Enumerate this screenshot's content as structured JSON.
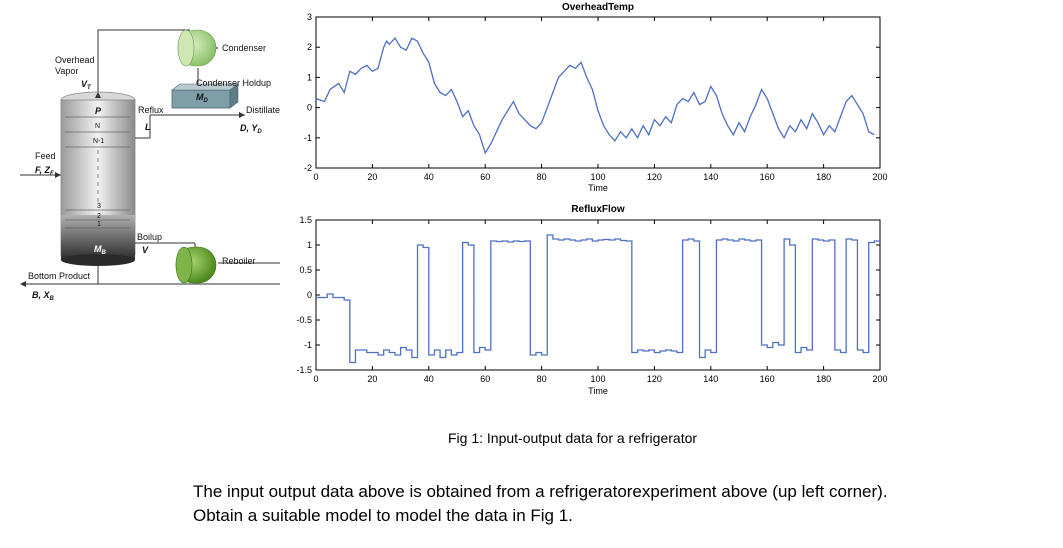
{
  "diagram": {
    "labels": {
      "overhead_vapor_1": "Overhead",
      "overhead_vapor_2": "Vapor",
      "vt": "V",
      "vt_sub": "T",
      "condenser": "Condenser",
      "condenser_holdup": "Condenser Holdup",
      "md": "M",
      "md_sub": "D",
      "reflux": "Reflux",
      "l": "L",
      "distillate": "Distillate",
      "d_yd": "D, Y",
      "d_yd_sub": "D",
      "p": "P",
      "n": "N",
      "n1": "N-1",
      "feed_1": "Feed",
      "feed_2": "F, Z",
      "feed_2_sub": "F",
      "tray3": "3",
      "tray2": "2",
      "tray1": "1",
      "mb": "M",
      "mb_sub": "B",
      "boilup": "Boilup",
      "v": "V",
      "reboiler": "Reboiler",
      "bottom_product": "Bottom Product",
      "b_xb": "B, X",
      "b_xb_sub": "B"
    }
  },
  "chart_data": [
    {
      "type": "line",
      "title": "OverheadTemp",
      "xlabel": "Time",
      "ylabel": "",
      "xlim": [
        0,
        200
      ],
      "ylim": [
        -2,
        3
      ],
      "xticks": [
        "0",
        "20",
        "40",
        "60",
        "80",
        "100",
        "120",
        "140",
        "160",
        "180",
        "200"
      ],
      "yticks": [
        "-2",
        "-1",
        "0",
        "1",
        "2",
        "3"
      ],
      "series": [
        {
          "name": "OverheadTemp",
          "color": "#4d6fc4",
          "x": [
            0,
            3,
            5,
            8,
            10,
            12,
            14,
            16,
            18,
            20,
            22,
            24,
            25,
            26,
            28,
            30,
            32,
            34,
            36,
            38,
            40,
            42,
            44,
            46,
            48,
            50,
            52,
            54,
            56,
            58,
            60,
            62,
            64,
            66,
            68,
            70,
            72,
            74,
            76,
            78,
            80,
            82,
            84,
            86,
            88,
            90,
            92,
            94,
            96,
            98,
            100,
            102,
            104,
            106,
            108,
            110,
            112,
            114,
            116,
            118,
            120,
            122,
            124,
            126,
            128,
            130,
            132,
            134,
            136,
            138,
            140,
            142,
            144,
            146,
            148,
            150,
            152,
            154,
            156,
            158,
            160,
            162,
            164,
            166,
            168,
            170,
            172,
            174,
            176,
            178,
            180,
            182,
            184,
            186,
            188,
            190,
            192,
            194,
            196,
            198
          ],
          "y": [
            0.3,
            0.2,
            0.6,
            0.8,
            0.5,
            1.2,
            1.1,
            1.3,
            1.4,
            1.2,
            1.3,
            2.0,
            2.2,
            2.1,
            2.3,
            2.0,
            1.9,
            2.3,
            2.2,
            1.8,
            1.5,
            0.8,
            0.5,
            0.4,
            0.6,
            0.2,
            -0.3,
            -0.1,
            -0.6,
            -0.9,
            -1.5,
            -1.2,
            -0.8,
            -0.4,
            -0.1,
            0.2,
            -0.2,
            -0.4,
            -0.6,
            -0.7,
            -0.5,
            0.0,
            0.5,
            1.0,
            1.2,
            1.4,
            1.3,
            1.5,
            1.0,
            0.6,
            -0.1,
            -0.6,
            -0.9,
            -1.1,
            -0.8,
            -1.0,
            -0.7,
            -1.0,
            -0.6,
            -0.9,
            -0.4,
            -0.6,
            -0.3,
            -0.5,
            0.1,
            0.3,
            0.2,
            0.5,
            0.1,
            0.2,
            0.7,
            0.4,
            -0.2,
            -0.6,
            -0.9,
            -0.5,
            -0.8,
            -0.3,
            0.1,
            0.6,
            0.3,
            -0.2,
            -0.7,
            -1.0,
            -0.6,
            -0.8,
            -0.4,
            -0.7,
            -0.2,
            -0.5,
            -0.9,
            -0.6,
            -0.8,
            -0.3,
            0.2,
            0.4,
            0.1,
            -0.2,
            -0.8,
            -0.9
          ]
        }
      ]
    },
    {
      "type": "line",
      "title": "RefluxFlow",
      "xlabel": "Time",
      "ylabel": "",
      "xlim": [
        0,
        200
      ],
      "ylim": [
        -1.5,
        1.5
      ],
      "xticks": [
        "0",
        "20",
        "40",
        "60",
        "80",
        "100",
        "120",
        "140",
        "160",
        "180",
        "200"
      ],
      "yticks": [
        "-1.5",
        "-1",
        "-0.5",
        "0",
        "0.5",
        "1",
        "1.5"
      ],
      "series": [
        {
          "name": "RefluxFlow",
          "color": "#4d6fc4",
          "x": [
            0,
            4,
            6,
            10,
            12,
            14,
            18,
            22,
            24,
            26,
            28,
            30,
            32,
            34,
            36,
            38,
            40,
            42,
            44,
            46,
            48,
            50,
            52,
            54,
            56,
            58,
            60,
            62,
            64,
            66,
            68,
            70,
            72,
            74,
            76,
            78,
            80,
            82,
            84,
            86,
            88,
            90,
            92,
            94,
            96,
            98,
            100,
            102,
            104,
            106,
            108,
            110,
            112,
            114,
            116,
            118,
            120,
            122,
            124,
            126,
            128,
            130,
            132,
            134,
            136,
            138,
            140,
            142,
            144,
            146,
            148,
            150,
            152,
            154,
            156,
            158,
            160,
            162,
            164,
            166,
            168,
            170,
            172,
            174,
            176,
            178,
            180,
            182,
            184,
            186,
            188,
            190,
            192,
            194,
            196,
            198
          ],
          "y": [
            -0.05,
            0.02,
            -0.05,
            -0.1,
            -1.35,
            -1.1,
            -1.15,
            -1.2,
            -1.1,
            -1.15,
            -1.2,
            -1.05,
            -1.1,
            -1.25,
            1.0,
            0.95,
            -1.2,
            -1.1,
            -1.25,
            -1.1,
            -1.2,
            -1.15,
            1.05,
            1.0,
            -1.15,
            -1.05,
            -1.1,
            1.08,
            1.07,
            1.08,
            1.06,
            1.08,
            1.07,
            1.08,
            -1.2,
            -1.15,
            -1.2,
            1.2,
            1.12,
            1.1,
            1.12,
            1.1,
            1.08,
            1.1,
            1.12,
            1.08,
            1.1,
            1.11,
            1.1,
            1.12,
            1.09,
            1.08,
            -1.15,
            -1.1,
            -1.12,
            -1.1,
            -1.15,
            -1.12,
            -1.1,
            -1.12,
            -1.15,
            1.1,
            1.12,
            1.08,
            -1.25,
            -1.1,
            -1.15,
            1.1,
            1.12,
            1.1,
            1.08,
            1.12,
            1.1,
            1.08,
            1.1,
            -1.0,
            -1.05,
            -0.95,
            -1.0,
            1.12,
            1.0,
            -1.15,
            -1.05,
            -1.1,
            1.12,
            1.1,
            1.08,
            1.1,
            -1.1,
            -1.15,
            1.12,
            1.1,
            -1.1,
            -1.15,
            1.05,
            1.08
          ]
        }
      ]
    }
  ],
  "caption": "Fig 1: Input-output data for a refrigerator",
  "note": {
    "line1": "The input output data above is obtained from a refrigeratorexperiment above (up left corner).",
    "line2": "Obtain a suitable model to model the data in Fig 1."
  }
}
